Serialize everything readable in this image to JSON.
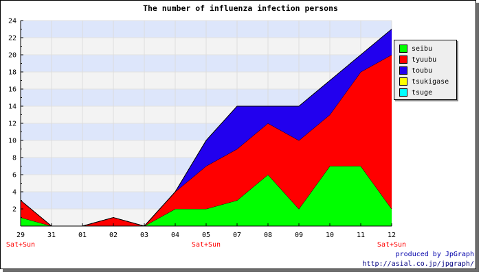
{
  "chart_data": {
    "type": "area",
    "stacked": true,
    "title": "The number of influenza infection persons",
    "xlabel": "",
    "ylabel": "",
    "ylim": [
      0,
      24
    ],
    "yticks": [
      2,
      4,
      6,
      8,
      10,
      12,
      14,
      16,
      18,
      20,
      22,
      24
    ],
    "categories": [
      "29",
      "31",
      "01",
      "02",
      "03",
      "04",
      "05",
      "07",
      "08",
      "09",
      "10",
      "11",
      "12"
    ],
    "weekend_labels": [
      {
        "category": "29",
        "text": "Sat+Sun"
      },
      {
        "category": "05",
        "text": "Sat+Sun"
      },
      {
        "category": "12",
        "text": "Sat+Sun"
      }
    ],
    "series": [
      {
        "name": "seibu",
        "color": "#00ff00",
        "values": [
          1,
          0,
          0,
          0,
          0,
          2,
          2,
          3,
          6,
          2,
          7,
          7,
          2
        ]
      },
      {
        "name": "tyuubu",
        "color": "#ff0000",
        "values": [
          2,
          0,
          0,
          1,
          0,
          2,
          5,
          6,
          6,
          8,
          6,
          11,
          18
        ]
      },
      {
        "name": "toubu",
        "color": "#2200ee",
        "values": [
          0,
          0,
          0,
          0,
          0,
          0,
          3,
          5,
          2,
          4,
          4,
          2,
          3
        ]
      },
      {
        "name": "tsukigase",
        "color": "#ffff00",
        "values": [
          0,
          0,
          0,
          0,
          0,
          0,
          0,
          0,
          0,
          0,
          0,
          0,
          0
        ]
      },
      {
        "name": "tsuge",
        "color": "#00ffff",
        "values": [
          0,
          0,
          0,
          0,
          0,
          0,
          0,
          0,
          0,
          0,
          0,
          0,
          0
        ]
      }
    ],
    "legend": "right",
    "grid": true,
    "background_bands": [
      "#dde6fb",
      "#f3f3f3"
    ]
  },
  "credit": {
    "line1": "produced by JpGraph",
    "line2": "http://asial.co.jp/jpgraph/"
  }
}
